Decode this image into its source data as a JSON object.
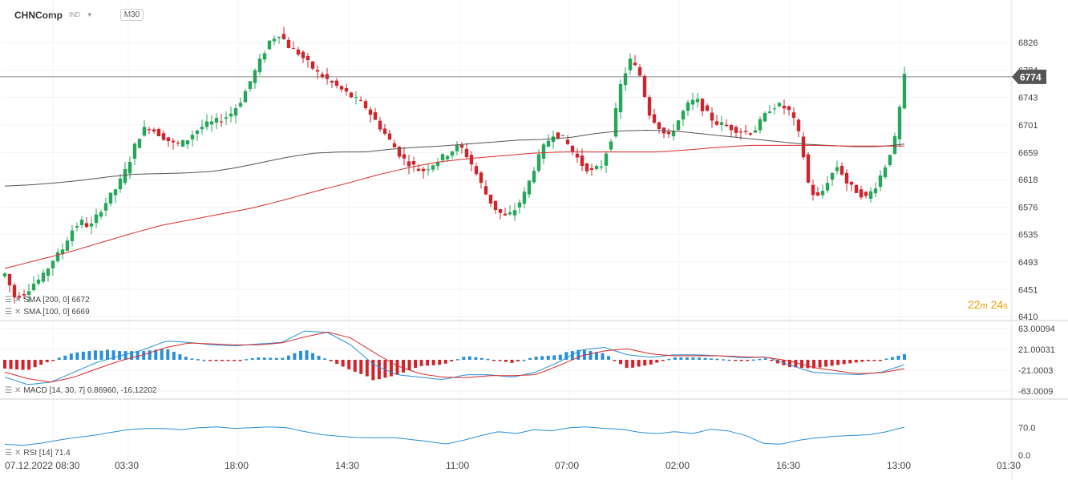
{
  "header": {
    "symbol": "CHNComp",
    "sub": "IND",
    "timeframe": "M30"
  },
  "countdown": {
    "min": "22",
    "min_unit": "m",
    "sec": "24",
    "sec_unit": "s"
  },
  "colors": {
    "up": "#26a65b",
    "down": "#d0242d",
    "sma100": "#d92b2b",
    "sma200": "#555555",
    "macd": "#2a8fd6",
    "signal": "#d92b2b",
    "rsi": "#2a8fd6",
    "price_tag": "#555555"
  },
  "legend": {
    "sma200": "SMA  [200,  0]  6672",
    "sma100": "SMA  [100,  0]  6669",
    "macd": "MACD  [14,  30,  7]  0.86960,   -16.12202",
    "rsi": "RSI  [14]  71.4"
  },
  "chart_data": [
    {
      "type": "candlestick",
      "title": "CHNComp",
      "timeframe": "M30",
      "last_price": 6774,
      "price_axis_ticks": [
        "6826",
        "6784",
        "6743",
        "6701",
        "6659",
        "6618",
        "6576",
        "6535",
        "6493",
        "6451",
        "6410"
      ],
      "ylim": [
        6410,
        6853
      ],
      "x_tick_labels": [
        "07.12.2022  08:30",
        "03:30",
        "18:00",
        "14:30",
        "11:00",
        "07:00",
        "02:00",
        "16:30",
        "13:00",
        "01:30"
      ],
      "close_path": [
        6475,
        6440,
        6445,
        6460,
        6470,
        6495,
        6510,
        6540,
        6555,
        6545,
        6570,
        6590,
        6610,
        6640,
        6680,
        6700,
        6690,
        6680,
        6670,
        6675,
        6690,
        6700,
        6705,
        6710,
        6720,
        6740,
        6770,
        6800,
        6830,
        6840,
        6820,
        6810,
        6795,
        6780,
        6770,
        6760,
        6750,
        6740,
        6730,
        6710,
        6690,
        6670,
        6650,
        6640,
        6630,
        6640,
        6650,
        6660,
        6670,
        6650,
        6620,
        6590,
        6570,
        6560,
        6575,
        6600,
        6640,
        6670,
        6690,
        6680,
        6660,
        6640,
        6630,
        6640,
        6680,
        6760,
        6800,
        6780,
        6720,
        6700,
        6680,
        6705,
        6730,
        6740,
        6720,
        6705,
        6700,
        6695,
        6690,
        6690,
        6710,
        6730,
        6730,
        6720,
        6680,
        6600,
        6590,
        6620,
        6640,
        6610,
        6600,
        6590,
        6610,
        6640,
        6680,
        6774
      ],
      "sma200_path": [
        6608,
        6610,
        6613,
        6617,
        6622,
        6626,
        6627,
        6628,
        6630,
        6636,
        6644,
        6652,
        6658,
        6660,
        6660,
        6664,
        6667,
        6669,
        6672,
        6675,
        6678,
        6679,
        6682,
        6688,
        6692,
        6693,
        6692,
        6688,
        6684,
        6680,
        6676,
        6672,
        6670,
        6668,
        6668,
        6672
      ],
      "sma100_path": [
        6483,
        6495,
        6507,
        6521,
        6535,
        6548,
        6557,
        6566,
        6575,
        6587,
        6600,
        6612,
        6625,
        6636,
        6645,
        6650,
        6654,
        6658,
        6660,
        6660,
        6660,
        6660,
        6663,
        6667,
        6670,
        6670,
        6670,
        6669,
        6669,
        6669
      ],
      "series": [
        {
          "name": "SMA [200, 0]",
          "last_value": 6672
        },
        {
          "name": "SMA [100, 0]",
          "last_value": 6669
        }
      ]
    },
    {
      "type": "histogram+line",
      "title": "MACD [14, 30, 7]",
      "values_shown": [
        0.8696,
        -16.12202
      ],
      "axis_ticks": [
        "63.00094",
        "21.00031",
        "-21.0003",
        "-63.0009"
      ],
      "ylim": [
        -63.0009,
        63.00094
      ],
      "macd_path": [
        -35,
        -50,
        -45,
        -25,
        -5,
        8,
        20,
        38,
        35,
        30,
        28,
        32,
        35,
        58,
        55,
        30,
        -10,
        -30,
        -35,
        -40,
        -30,
        -30,
        -35,
        -25,
        -5,
        20,
        25,
        10,
        5,
        10,
        10,
        8,
        4,
        6,
        -10,
        -25,
        -28,
        -30,
        -25,
        -10
      ],
      "signal_path": [
        -25,
        -38,
        -45,
        -35,
        -18,
        -2,
        10,
        25,
        34,
        32,
        30,
        30,
        34,
        46,
        56,
        44,
        15,
        -12,
        -28,
        -35,
        -36,
        -32,
        -32,
        -30,
        -12,
        8,
        18,
        22,
        12,
        8,
        8,
        8,
        6,
        5,
        -2,
        -15,
        -22,
        -28,
        -26,
        -18
      ]
    },
    {
      "type": "line",
      "title": "RSI [14]",
      "last_value": 71.4,
      "axis_ticks": [
        "70.0",
        "0.0"
      ],
      "ylim": [
        0,
        100
      ],
      "rsi_path": [
        28,
        25,
        30,
        38,
        45,
        50,
        58,
        65,
        68,
        68,
        65,
        70,
        72,
        68,
        70,
        72,
        70,
        60,
        52,
        48,
        45,
        44,
        45,
        40,
        35,
        28,
        38,
        50,
        60,
        55,
        65,
        62,
        70,
        72,
        68,
        66,
        58,
        55,
        60,
        55,
        66,
        62,
        50,
        30,
        28,
        38,
        44,
        48,
        50,
        52,
        60,
        71.4
      ]
    }
  ]
}
